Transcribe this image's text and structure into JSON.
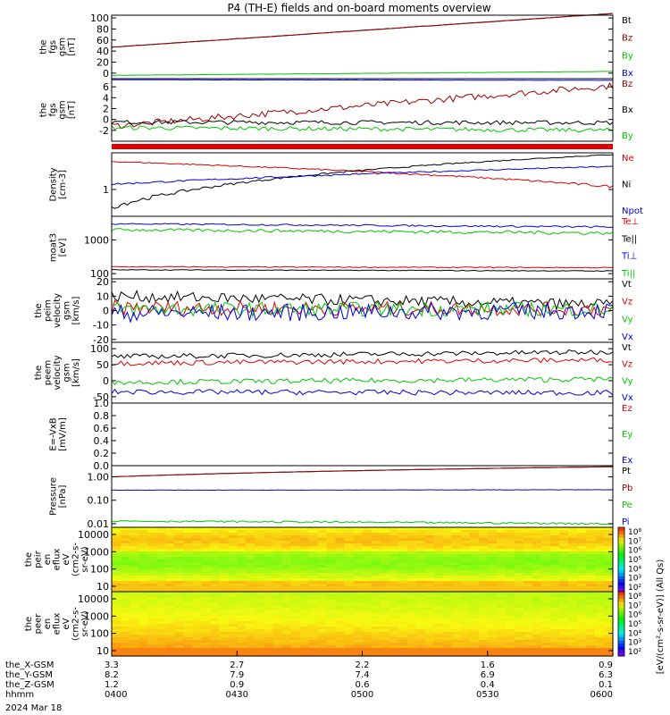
{
  "title": "P4 (TH-E) fields and on-board moments overview",
  "colors": {
    "black": "#000000",
    "red": "#e00000",
    "darkred": "#a00000",
    "green": "#00c800",
    "blue": "#0000e0"
  },
  "chart_data": [
    {
      "type": "line",
      "ylabel": [
        "the",
        "fgs",
        "gsm",
        "[nT]"
      ],
      "yticks": [
        "0",
        "20",
        "40",
        "60",
        "80",
        "100"
      ],
      "ylim": [
        -10,
        105
      ],
      "series": [
        {
          "name": "Bt",
          "color": "#000000",
          "start": 47,
          "end": 108,
          "noise": 0.3
        },
        {
          "name": "Bz",
          "color": "#a00000",
          "start": 47,
          "end": 108,
          "noise": 0.3
        },
        {
          "name": "By",
          "color": "#00c800",
          "start": -4,
          "end": 3,
          "noise": 0.3
        },
        {
          "name": "Bx",
          "color": "#0000e0",
          "start": -12,
          "end": -13,
          "noise": 0.2
        }
      ]
    },
    {
      "type": "line",
      "ylabel": [
        "the",
        "fgs",
        "gsm",
        "[nT]"
      ],
      "yticks": [
        "-2",
        "0",
        "2",
        "4",
        "6"
      ],
      "ylim": [
        -4,
        7.5
      ],
      "series": [
        {
          "name": "Bz",
          "color": "#a00000",
          "start": -1.2,
          "end": 6.2,
          "noise": 0.6
        },
        {
          "name": "Bx",
          "color": "#000000",
          "start": -0.5,
          "end": -0.6,
          "noise": 0.4
        },
        {
          "name": "By",
          "color": "#00c800",
          "start": -1.5,
          "end": -2.0,
          "noise": 0.4
        }
      ]
    },
    {
      "type": "line",
      "ylabel": [
        "Density",
        "[cm-3]"
      ],
      "yticks": [
        "1"
      ],
      "ylim": [
        0.4,
        3.5
      ],
      "series": [
        {
          "name": "Ne",
          "color": "#e00000",
          "start": 2.6,
          "end": 1.1,
          "noise": 0.05
        },
        {
          "name": "Ni",
          "color": "#000000",
          "start": 0.55,
          "end": 3.3,
          "noise": 0.05
        },
        {
          "name": "Npot",
          "color": "#0000e0",
          "start": 1.2,
          "end": 2.2,
          "noise": 0.04
        }
      ]
    },
    {
      "type": "line",
      "ylabel": [
        "moat3",
        "[eV]"
      ],
      "yticks": [
        "100",
        "1000"
      ],
      "ylim": [
        70,
        5000
      ],
      "series": [
        {
          "name": "Te⊥",
          "color": "#e00000",
          "start": 160,
          "end": 150,
          "noise": 5
        },
        {
          "name": "Te||",
          "color": "#000000",
          "start": 130,
          "end": 120,
          "noise": 3
        },
        {
          "name": "Ti⊥",
          "color": "#0000e0",
          "start": 3000,
          "end": 2400,
          "noise": 150
        },
        {
          "name": "Ti||",
          "color": "#00c800",
          "start": 2000,
          "end": 1600,
          "noise": 200
        }
      ]
    },
    {
      "type": "line",
      "ylabel": [
        "the",
        "peim",
        "velocity",
        "gsm",
        "[km/s]"
      ],
      "yticks": [
        "-20",
        "-10",
        "0",
        "10",
        "20"
      ],
      "ylim": [
        -22,
        22
      ],
      "series": [
        {
          "name": "Vt",
          "color": "#000000",
          "start": 10,
          "end": 4,
          "noise": 4
        },
        {
          "name": "Vz",
          "color": "#e00000",
          "start": 2,
          "end": 1,
          "noise": 5
        },
        {
          "name": "Vy",
          "color": "#00c800",
          "start": 1,
          "end": 1,
          "noise": 5
        },
        {
          "name": "Vx",
          "color": "#0000e0",
          "start": -2,
          "end": 0,
          "noise": 6
        }
      ]
    },
    {
      "type": "line",
      "ylabel": [
        "the",
        "peem",
        "velocity",
        "gsm",
        "[km/s]"
      ],
      "yticks": [
        "-50",
        "0",
        "50",
        "100"
      ],
      "ylim": [
        -70,
        120
      ],
      "series": [
        {
          "name": "Vt",
          "color": "#000000",
          "start": 75,
          "end": 90,
          "noise": 8
        },
        {
          "name": "Vz",
          "color": "#e00000",
          "start": 55,
          "end": 65,
          "noise": 8
        },
        {
          "name": "Vy",
          "color": "#00c800",
          "start": -5,
          "end": 5,
          "noise": 8
        },
        {
          "name": "Vx",
          "color": "#0000e0",
          "start": -35,
          "end": -38,
          "noise": 8
        }
      ]
    },
    {
      "type": "line",
      "ylabel": [
        "E=-VxB",
        "[mV/m]"
      ],
      "yticks": [
        "0.0",
        "0.2",
        "0.4",
        "0.6",
        "0.8",
        "1.0"
      ],
      "ylim": [
        0,
        1
      ],
      "series": [
        {
          "name": "Ez",
          "color": "#e00000"
        },
        {
          "name": "Ey",
          "color": "#00c800"
        },
        {
          "name": "Ex",
          "color": "#0000e0"
        }
      ]
    },
    {
      "type": "line",
      "ylabel": [
        "Pressure",
        "[nPa]"
      ],
      "yticks": [
        "0.01",
        "0.10",
        "1.00"
      ],
      "ylim": [
        0.007,
        3
      ],
      "series": [
        {
          "name": "Pt",
          "color": "#000000",
          "start": 1.0,
          "end": 2.7,
          "noise": 0.01
        },
        {
          "name": "Pb",
          "color": "#a00000",
          "start": 1.0,
          "end": 2.7,
          "noise": 0.01
        },
        {
          "name": "Pe",
          "color": "#00c800",
          "start": 0.013,
          "end": 0.01,
          "noise": 0.001
        },
        {
          "name": "Pi",
          "color": "#0000e0",
          "start": 0.27,
          "end": 0.28,
          "noise": 0.005
        }
      ]
    },
    {
      "type": "heatmap",
      "ylabel": [
        "the",
        "peir",
        "en",
        "eflux",
        "eV",
        "(cm2-s-",
        "sr-eV)"
      ],
      "yticks": [
        "10",
        "100",
        "1000",
        "10000"
      ],
      "colorbar_ticks": [
        "10²",
        "10³",
        "10⁴",
        "10⁵",
        "10⁶",
        "10⁷",
        "10⁸"
      ]
    },
    {
      "type": "heatmap",
      "ylabel": [
        "the",
        "peer",
        "en",
        "eflux",
        "eV",
        "(cm2-s-",
        "sr-eV)"
      ],
      "yticks": [
        "10",
        "100",
        "1000",
        "10000"
      ],
      "colorbar_ticks": [
        "10²",
        "10³",
        "10⁴",
        "10⁵",
        "10⁶",
        "10⁷",
        "10⁸"
      ]
    }
  ],
  "colorbar_label": "[eV/(cm²-s-sr-eV)] (All Qs)",
  "x_axis": {
    "rows": [
      {
        "label": "the_X-GSM",
        "values": [
          "3.3",
          "2.7",
          "2.2",
          "1.6",
          "0.9"
        ]
      },
      {
        "label": "the_Y-GSM",
        "values": [
          "8.2",
          "7.9",
          "7.4",
          "6.9",
          "6.3"
        ]
      },
      {
        "label": "the_Z-GSM",
        "values": [
          "1.2",
          "0.9",
          "0.6",
          "0.4",
          "0.1"
        ]
      },
      {
        "label": "hhmm",
        "values": [
          "0400",
          "0430",
          "0500",
          "0530",
          "0600"
        ]
      }
    ],
    "date": "2024 Mar 18"
  }
}
